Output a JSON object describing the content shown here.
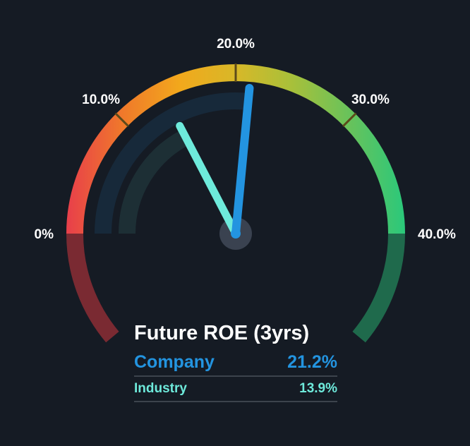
{
  "chart_data": {
    "type": "gauge",
    "title": "Future ROE (3yrs)",
    "scale": {
      "min": 0,
      "max": 40,
      "ticks": [
        {
          "value": 0,
          "label": "0%"
        },
        {
          "value": 10,
          "label": "10.0%"
        },
        {
          "value": 20,
          "label": "20.0%"
        },
        {
          "value": 30,
          "label": "30.0%"
        },
        {
          "value": 40,
          "label": "40.0%"
        }
      ]
    },
    "series": [
      {
        "name": "Company",
        "value": 21.2,
        "display": "21.2%",
        "color": "#2394e0"
      },
      {
        "name": "Industry",
        "value": 13.9,
        "display": "13.9%",
        "color": "#6eeadb"
      }
    ]
  },
  "colors": {
    "background": "#151b24",
    "band_stops": [
      "#e8404a",
      "#f07a2a",
      "#f2a81c",
      "#d8b828",
      "#a8c03a",
      "#6ac25a",
      "#2cc87a"
    ],
    "lower_left": "#7a2a32",
    "lower_right": "#1f6a4c",
    "inner_track": "#17293a",
    "inner_track_2": "#1d2f35",
    "hub": "#3a4250"
  }
}
